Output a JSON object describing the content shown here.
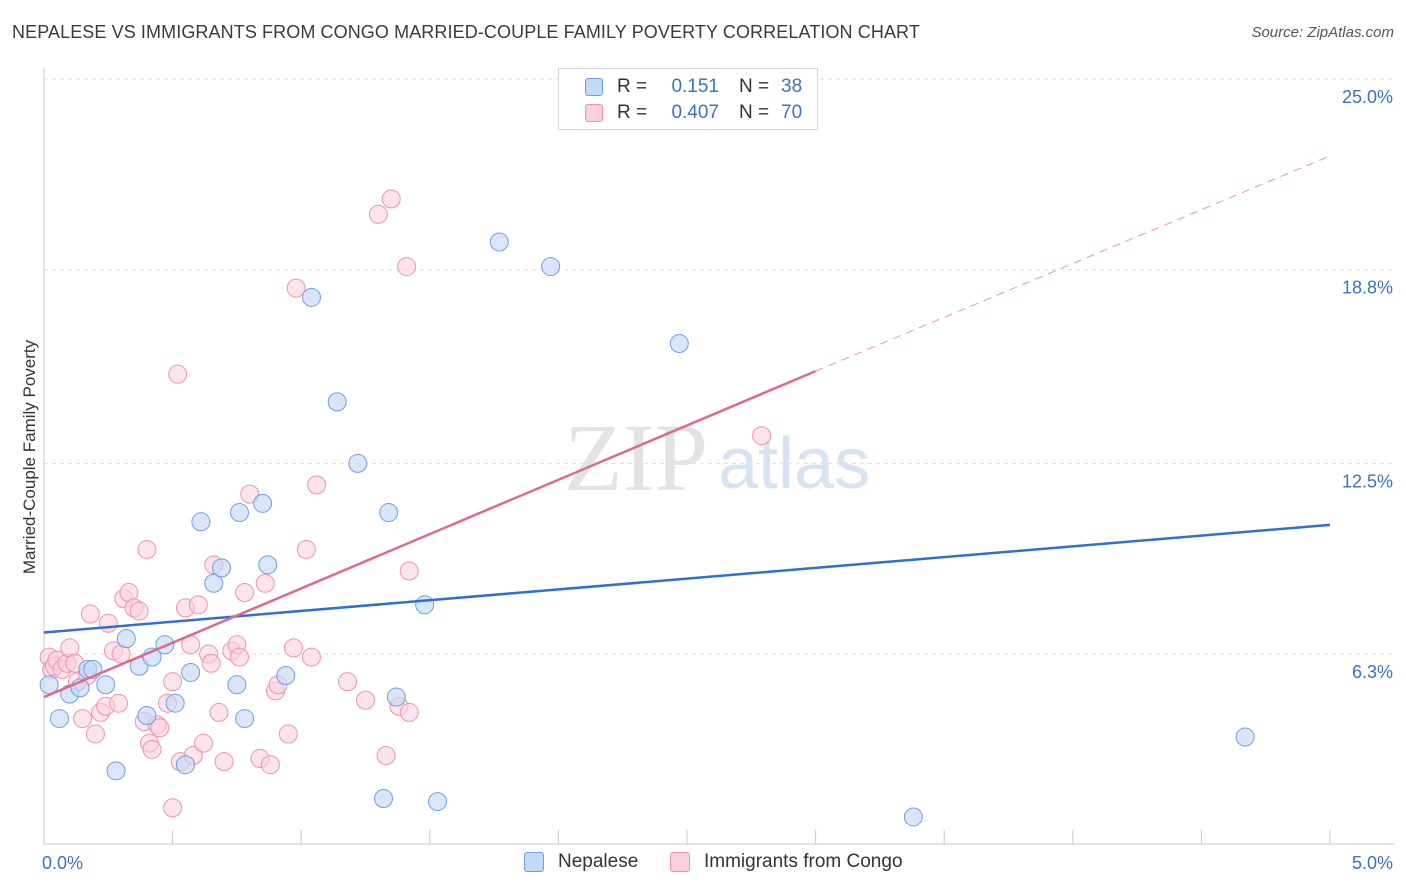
{
  "title": "NEPALESE VS IMMIGRANTS FROM CONGO MARRIED-COUPLE FAMILY POVERTY CORRELATION CHART",
  "source": "Source: ZipAtlas.com",
  "watermark": {
    "zip": "ZIP",
    "atlas": "atlas"
  },
  "legend_top": {
    "rows": [
      {
        "r_label": "R =",
        "r_value": "0.151",
        "n_label": "N =",
        "n_value": "38"
      },
      {
        "r_label": "R =",
        "r_value": "0.407",
        "n_label": "N =",
        "n_value": "70"
      }
    ]
  },
  "colors": {
    "nepalese_fill": "#c5d9f7",
    "nepalese_stroke": "#6e9fe0",
    "nepalese_line": "#2f6fcf",
    "congo_fill": "#fbd0dc",
    "congo_stroke": "#ee93ae",
    "congo_line": "#e06890",
    "axis_label": "#3a72c4",
    "grid": "#dddddd"
  },
  "chart_data": {
    "type": "scatter",
    "title": "NEPALESE VS IMMIGRANTS FROM CONGO MARRIED-COUPLE FAMILY POVERTY CORRELATION CHART",
    "xlabel": "",
    "ylabel": "Married-Couple Family Poverty",
    "xlim": [
      0,
      5
    ],
    "ylim": [
      0,
      26
    ],
    "x_tick_labels": [
      {
        "value": 0,
        "label": "0.0%"
      },
      {
        "value": 5,
        "label": "5.0%"
      }
    ],
    "y_tick_labels": [
      {
        "value": 6.3,
        "label": "6.3%"
      },
      {
        "value": 12.5,
        "label": "12.5%"
      },
      {
        "value": 18.8,
        "label": "18.8%"
      },
      {
        "value": 25.0,
        "label": "25.0%"
      }
    ],
    "grid": "horizontal-dashed",
    "legend": "top-center and bottom",
    "series": [
      {
        "name": "Nepalese",
        "r": 0.151,
        "n": 38,
        "trend": {
          "x": [
            0,
            5
          ],
          "y": [
            7.0,
            10.5
          ]
        },
        "points": [
          [
            0.02,
            5.3
          ],
          [
            0.06,
            4.2
          ],
          [
            0.1,
            5.0
          ],
          [
            0.14,
            5.2
          ],
          [
            0.17,
            5.8
          ],
          [
            0.19,
            5.8
          ],
          [
            0.24,
            5.3
          ],
          [
            0.28,
            2.5
          ],
          [
            0.32,
            6.8
          ],
          [
            0.37,
            5.9
          ],
          [
            0.4,
            4.3
          ],
          [
            0.42,
            6.2
          ],
          [
            0.47,
            6.6
          ],
          [
            0.51,
            4.7
          ],
          [
            0.55,
            2.7
          ],
          [
            0.57,
            5.7
          ],
          [
            0.61,
            10.6
          ],
          [
            0.66,
            8.6
          ],
          [
            0.69,
            9.1
          ],
          [
            0.75,
            5.3
          ],
          [
            0.76,
            10.9
          ],
          [
            0.78,
            4.2
          ],
          [
            0.85,
            11.2
          ],
          [
            0.87,
            9.2
          ],
          [
            0.94,
            5.6
          ],
          [
            1.04,
            17.9
          ],
          [
            1.14,
            14.5
          ],
          [
            1.22,
            12.5
          ],
          [
            1.32,
            1.6
          ],
          [
            1.34,
            10.9
          ],
          [
            1.37,
            4.9
          ],
          [
            1.48,
            7.9
          ],
          [
            1.53,
            1.5
          ],
          [
            1.77,
            19.7
          ],
          [
            1.97,
            18.9
          ],
          [
            2.47,
            16.4
          ],
          [
            3.38,
            1.0
          ],
          [
            4.67,
            3.6
          ]
        ]
      },
      {
        "name": "Immigrants from Congo",
        "r": 0.407,
        "n": 70,
        "trend": {
          "x": [
            0,
            3.0
          ],
          "y": [
            4.9,
            15.5
          ]
        },
        "trend_extension": {
          "x": [
            3.0,
            5
          ],
          "y": [
            15.5,
            22.5
          ]
        },
        "points": [
          [
            0.02,
            6.2
          ],
          [
            0.03,
            5.8
          ],
          [
            0.04,
            5.9
          ],
          [
            0.05,
            6.1
          ],
          [
            0.07,
            5.8
          ],
          [
            0.09,
            6.0
          ],
          [
            0.1,
            6.5
          ],
          [
            0.12,
            6.0
          ],
          [
            0.13,
            5.4
          ],
          [
            0.15,
            4.2
          ],
          [
            0.17,
            5.6
          ],
          [
            0.18,
            7.6
          ],
          [
            0.2,
            3.7
          ],
          [
            0.22,
            4.4
          ],
          [
            0.24,
            4.6
          ],
          [
            0.25,
            7.3
          ],
          [
            0.27,
            6.4
          ],
          [
            0.29,
            4.7
          ],
          [
            0.3,
            6.3
          ],
          [
            0.31,
            8.1
          ],
          [
            0.33,
            8.3
          ],
          [
            0.35,
            7.8
          ],
          [
            0.37,
            7.7
          ],
          [
            0.39,
            4.1
          ],
          [
            0.4,
            9.7
          ],
          [
            0.41,
            3.4
          ],
          [
            0.42,
            3.2
          ],
          [
            0.44,
            4.0
          ],
          [
            0.45,
            3.9
          ],
          [
            0.48,
            4.7
          ],
          [
            0.5,
            5.4
          ],
          [
            0.5,
            1.3
          ],
          [
            0.52,
            15.4
          ],
          [
            0.53,
            2.8
          ],
          [
            0.55,
            7.8
          ],
          [
            0.57,
            6.6
          ],
          [
            0.58,
            3.0
          ],
          [
            0.6,
            7.9
          ],
          [
            0.62,
            3.4
          ],
          [
            0.64,
            6.3
          ],
          [
            0.65,
            6.0
          ],
          [
            0.66,
            9.2
          ],
          [
            0.68,
            4.4
          ],
          [
            0.7,
            2.8
          ],
          [
            0.73,
            6.4
          ],
          [
            0.75,
            6.6
          ],
          [
            0.76,
            6.2
          ],
          [
            0.78,
            8.3
          ],
          [
            0.8,
            11.5
          ],
          [
            0.84,
            2.9
          ],
          [
            0.86,
            8.6
          ],
          [
            0.88,
            2.7
          ],
          [
            0.9,
            5.1
          ],
          [
            0.91,
            5.3
          ],
          [
            0.95,
            3.7
          ],
          [
            0.97,
            6.5
          ],
          [
            0.98,
            18.2
          ],
          [
            1.02,
            9.7
          ],
          [
            1.04,
            6.2
          ],
          [
            1.06,
            11.8
          ],
          [
            1.18,
            5.4
          ],
          [
            1.25,
            4.8
          ],
          [
            1.3,
            20.6
          ],
          [
            1.33,
            3.0
          ],
          [
            1.35,
            21.1
          ],
          [
            1.38,
            4.6
          ],
          [
            1.42,
            4.4
          ],
          [
            1.41,
            18.9
          ],
          [
            1.42,
            9.0
          ],
          [
            2.79,
            13.4
          ]
        ]
      }
    ]
  },
  "bottom_legend": [
    {
      "label": "Nepalese"
    },
    {
      "label": "Immigrants from Congo"
    }
  ]
}
